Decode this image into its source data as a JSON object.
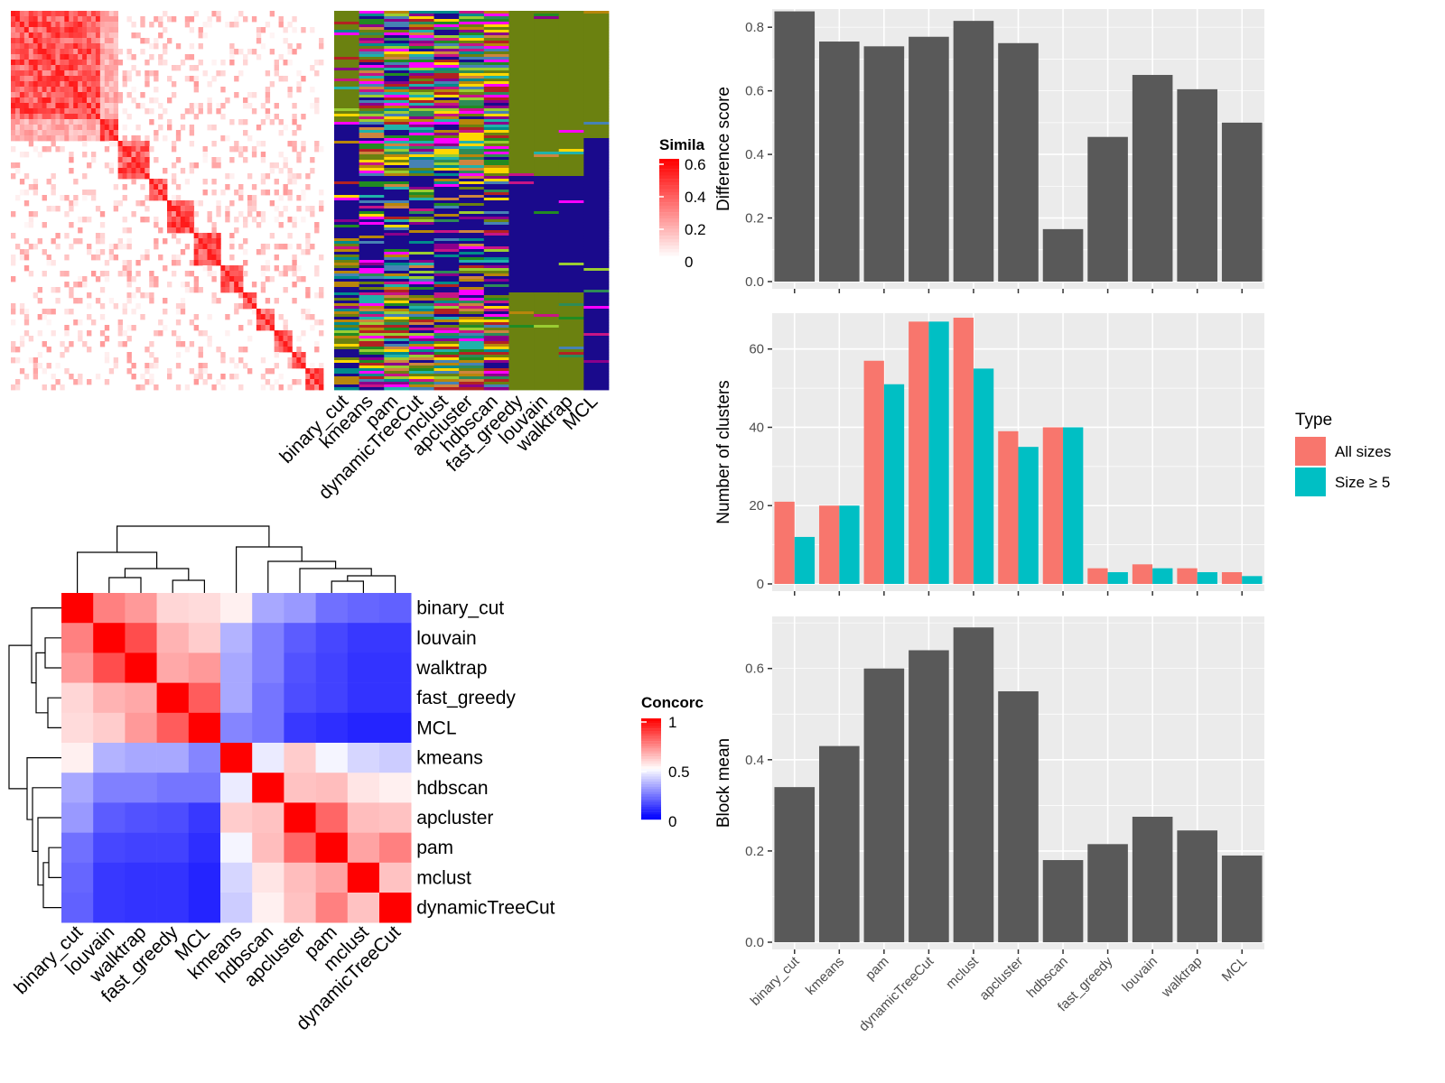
{
  "methods": [
    "binary_cut",
    "kmeans",
    "pam",
    "dynamicTreeCut",
    "mclust",
    "apcluster",
    "hdbscan",
    "fast_greedy",
    "louvain",
    "walktrap",
    "MCL"
  ],
  "colors": {
    "panel_bg": "#EBEBEB",
    "grid": "#FFFFFF",
    "bar": "#595959",
    "all_sizes": "#F8766D",
    "size_ge5": "#00BFC4",
    "heat_high": "#FF0000",
    "heat_mid": "#FFFFFF",
    "heat_low": "#0000FF",
    "olive": "#6B8110",
    "navy": "#1A0A8C"
  },
  "similarity_legend": {
    "title": "Simila",
    "ticks": [
      "0.6",
      "0.4",
      "0.2",
      "0"
    ]
  },
  "concordance_legend": {
    "title": "Concorc",
    "ticks": [
      "1",
      "0.5",
      "0"
    ]
  },
  "concordance": {
    "row_order": [
      "binary_cut",
      "louvain",
      "walktrap",
      "fast_greedy",
      "MCL",
      "kmeans",
      "hdbscan",
      "apcluster",
      "pam",
      "mclust",
      "dynamicTreeCut"
    ],
    "matrix": [
      [
        1.0,
        0.75,
        0.7,
        0.58,
        0.57,
        0.53,
        0.33,
        0.3,
        0.22,
        0.2,
        0.19
      ],
      [
        0.75,
        1.0,
        0.85,
        0.65,
        0.6,
        0.35,
        0.25,
        0.18,
        0.14,
        0.11,
        0.11
      ],
      [
        0.7,
        0.85,
        1.0,
        0.67,
        0.7,
        0.33,
        0.25,
        0.16,
        0.13,
        0.1,
        0.1
      ],
      [
        0.58,
        0.65,
        0.67,
        1.0,
        0.82,
        0.33,
        0.23,
        0.15,
        0.13,
        0.1,
        0.1
      ],
      [
        0.57,
        0.6,
        0.7,
        0.82,
        1.0,
        0.26,
        0.23,
        0.11,
        0.09,
        0.07,
        0.07
      ],
      [
        0.53,
        0.35,
        0.33,
        0.33,
        0.26,
        1.0,
        0.46,
        0.6,
        0.48,
        0.42,
        0.4
      ],
      [
        0.33,
        0.25,
        0.25,
        0.23,
        0.23,
        0.46,
        1.0,
        0.62,
        0.63,
        0.55,
        0.53
      ],
      [
        0.3,
        0.18,
        0.16,
        0.15,
        0.11,
        0.6,
        0.62,
        1.0,
        0.8,
        0.63,
        0.62
      ],
      [
        0.22,
        0.14,
        0.13,
        0.13,
        0.09,
        0.48,
        0.63,
        0.8,
        1.0,
        0.68,
        0.75
      ],
      [
        0.2,
        0.11,
        0.1,
        0.1,
        0.07,
        0.42,
        0.55,
        0.63,
        0.68,
        1.0,
        0.62
      ],
      [
        0.19,
        0.11,
        0.1,
        0.1,
        0.07,
        0.4,
        0.53,
        0.62,
        0.75,
        0.62,
        1.0
      ]
    ]
  },
  "chart_data": [
    {
      "type": "bar",
      "categories": [
        "binary_cut",
        "kmeans",
        "pam",
        "dynamicTreeCut",
        "mclust",
        "apcluster",
        "hdbscan",
        "fast_greedy",
        "louvain",
        "walktrap",
        "MCL"
      ],
      "values": [
        0.85,
        0.755,
        0.74,
        0.77,
        0.82,
        0.75,
        0.165,
        0.455,
        0.65,
        0.605,
        0.5
      ],
      "ylabel": "Difference score",
      "yticks": [
        "0.0",
        "0.2",
        "0.4",
        "0.6",
        "0.8"
      ],
      "ylim": [
        0,
        0.88
      ]
    },
    {
      "type": "bar",
      "categories": [
        "binary_cut",
        "kmeans",
        "pam",
        "dynamicTreeCut",
        "mclust",
        "apcluster",
        "hdbscan",
        "fast_greedy",
        "louvain",
        "walktrap",
        "MCL"
      ],
      "series": [
        {
          "name": "All sizes",
          "values": [
            21,
            20,
            57,
            67,
            68,
            39,
            40,
            4,
            5,
            4,
            3
          ]
        },
        {
          "name": "Size ≥ 5",
          "values": [
            12,
            20,
            51,
            67,
            55,
            35,
            40,
            3,
            4,
            3,
            2
          ]
        }
      ],
      "ylabel": "Number of clusters",
      "yticks": [
        "0",
        "20",
        "40",
        "60"
      ],
      "ylim": [
        0,
        71
      ],
      "legend": {
        "title": "Type",
        "position": "right"
      }
    },
    {
      "type": "bar",
      "categories": [
        "binary_cut",
        "kmeans",
        "pam",
        "dynamicTreeCut",
        "mclust",
        "apcluster",
        "hdbscan",
        "fast_greedy",
        "louvain",
        "walktrap",
        "MCL"
      ],
      "values": [
        0.34,
        0.43,
        0.6,
        0.64,
        0.69,
        0.55,
        0.18,
        0.215,
        0.275,
        0.245,
        0.19
      ],
      "ylabel": "Block mean",
      "yticks": [
        "0.0",
        "0.2",
        "0.4",
        "0.6"
      ],
      "ylim": [
        0,
        0.73
      ]
    }
  ]
}
